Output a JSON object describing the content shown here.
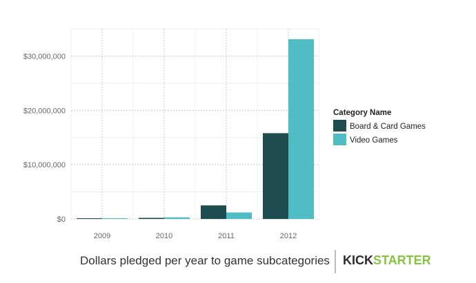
{
  "chart_data": {
    "type": "bar",
    "categories": [
      "2009",
      "2010",
      "2011",
      "2012"
    ],
    "series": [
      {
        "name": "Board & Card Games",
        "values": [
          20000,
          200000,
          2500000,
          15800000
        ],
        "color": "#1f4c4f"
      },
      {
        "name": "Video Games",
        "values": [
          30000,
          300000,
          1200000,
          33100000
        ],
        "color": "#4fbdc3"
      }
    ],
    "ylim": [
      0,
      35000000
    ],
    "y_ticks": [
      0,
      10000000,
      20000000,
      30000000
    ],
    "y_tick_labels": [
      "$0",
      "$10,000,000",
      "$20,000,000",
      "$30,000,000"
    ],
    "xlabel": "",
    "ylabel": "",
    "grid": true,
    "legend": {
      "title": "Category Name",
      "position": "right"
    }
  },
  "footer": {
    "caption": "Dollars pledged per year to game subcategories",
    "brand_part1": "KICK",
    "brand_part2": "STARTER",
    "brand_color_1": "#2b2b2b",
    "brand_color_2": "#86c33f"
  }
}
